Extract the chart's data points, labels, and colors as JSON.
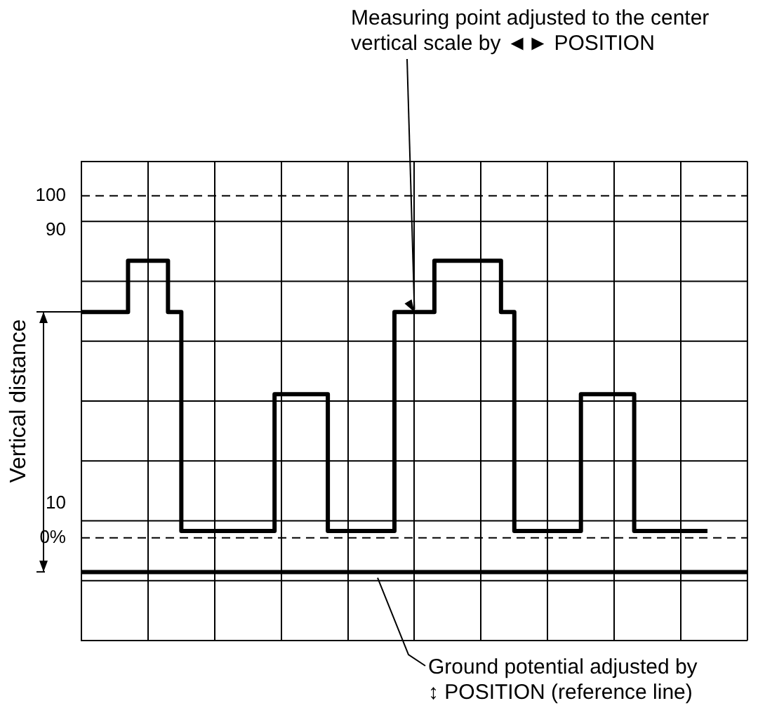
{
  "chart_data": {
    "type": "step",
    "ylabel": "Vertical distance",
    "categories": [
      null,
      null,
      null,
      null,
      null,
      null,
      null,
      null,
      null,
      null,
      null,
      null,
      null,
      null,
      null,
      null,
      null,
      null,
      null,
      null,
      null,
      null,
      null,
      null,
      null,
      null,
      null,
      null,
      null,
      null,
      null,
      null,
      null,
      null,
      null,
      null,
      null,
      null,
      null,
      null,
      null,
      null,
      null,
      null,
      null,
      null,
      null,
      null
    ],
    "series": [
      {
        "color": "#000000",
        "values": [
          66,
          66,
          66,
          66,
          81,
          81,
          81,
          66,
          2,
          2,
          2,
          2,
          2,
          2,
          2,
          42,
          42,
          42,
          42,
          2,
          2,
          2,
          2,
          2,
          66,
          66,
          66,
          81,
          81,
          81,
          81,
          81,
          66,
          2,
          2,
          2,
          2,
          2,
          42,
          42,
          42,
          42,
          2,
          2,
          2,
          2,
          2,
          2
        ]
      }
    ],
    "ylim": [
      -30,
      110
    ],
    "yticks": [
      {
        "value": 0,
        "label": "0%"
      },
      10,
      90,
      100
    ],
    "grid": true,
    "marker": "none",
    "line_style": "solid",
    "legend": false,
    "ref_lines": [
      {
        "axis": "y",
        "value": 100,
        "line_style": "dashed"
      },
      {
        "axis": "y",
        "value": 0,
        "line_style": "dashed"
      },
      {
        "axis": "y",
        "value": -10,
        "line_style": "solid",
        "label": "Ground potential adjusted by ↕ POSITION (reference line)"
      }
    ],
    "annotations": [
      "Measuring point adjusted to the center vertical scale by ◄► POSITION"
    ]
  }
}
